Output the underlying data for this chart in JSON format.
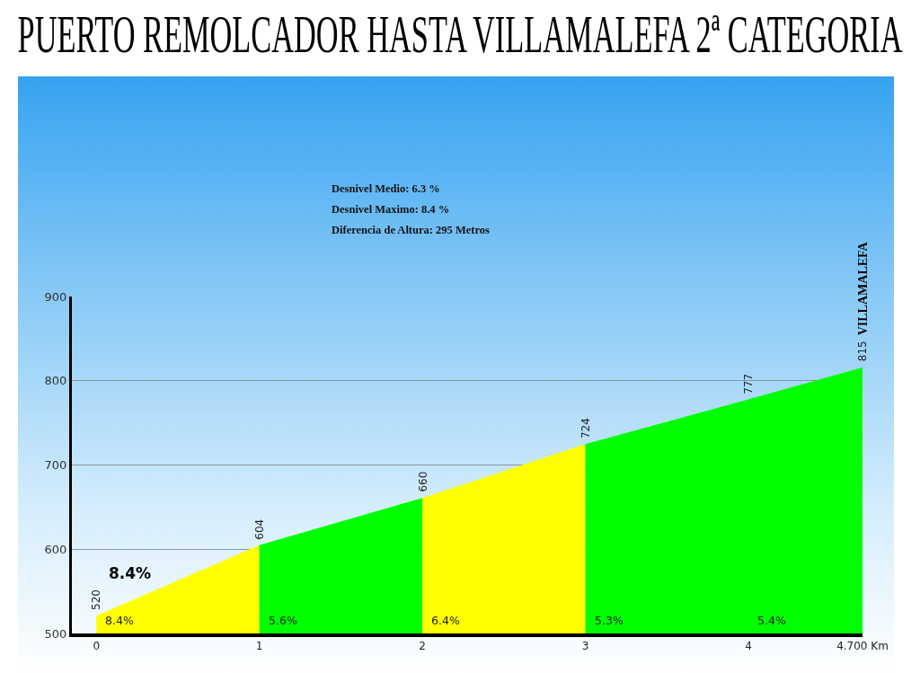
{
  "chart_data": {
    "type": "area",
    "title": "PUERTO REMOLCADOR HASTA VILLAMALEFA 2ª CATEGORIA",
    "series": [
      {
        "color": "#ffff00",
        "x": [
          0,
          1
        ],
        "values": [
          520,
          604
        ],
        "value_labels": [
          "520",
          "604"
        ]
      },
      {
        "color": "#00ff00",
        "x": [
          1,
          2
        ],
        "values": [
          604,
          660
        ],
        "value_labels": [
          null,
          "660"
        ]
      },
      {
        "color": "#ffff00",
        "x": [
          2,
          3
        ],
        "values": [
          660,
          724
        ],
        "value_labels": [
          null,
          "724"
        ]
      },
      {
        "color": "#00ff00",
        "x": [
          3,
          4
        ],
        "values": [
          724,
          777
        ],
        "value_labels": [
          null,
          "777"
        ]
      },
      {
        "color": "#00ff00",
        "x": [
          4,
          4.7
        ],
        "values": [
          777,
          815
        ],
        "value_labels": [
          null,
          "815"
        ]
      }
    ],
    "xlim": [
      -0.15,
      4.7
    ],
    "xticks": [
      0,
      1,
      2,
      3,
      4,
      {
        "value": 4.7,
        "label": "4.700 Km"
      }
    ],
    "ylim": [
      500,
      900
    ],
    "yticks": [
      500,
      600,
      700,
      800,
      900
    ],
    "grid": "y",
    "annotations": [
      "Desnivel Medio: 6.3 %",
      "Desnivel Maximo: 8.4 %",
      "Diferencia de Altura: 295 Metros",
      "8.4%",
      {
        "text": "8.4%",
        "x": 0,
        "y": 505
      },
      {
        "text": "5.6%",
        "x": 1,
        "y": 505
      },
      {
        "text": "6.4%",
        "x": 2,
        "y": 505
      },
      {
        "text": "5.3%",
        "x": 3,
        "y": 505
      },
      {
        "text": "5.4%",
        "x": 4,
        "y": 505
      },
      {
        "text": "VILLAMALEFA",
        "x": 4.7,
        "y": 815
      }
    ]
  }
}
